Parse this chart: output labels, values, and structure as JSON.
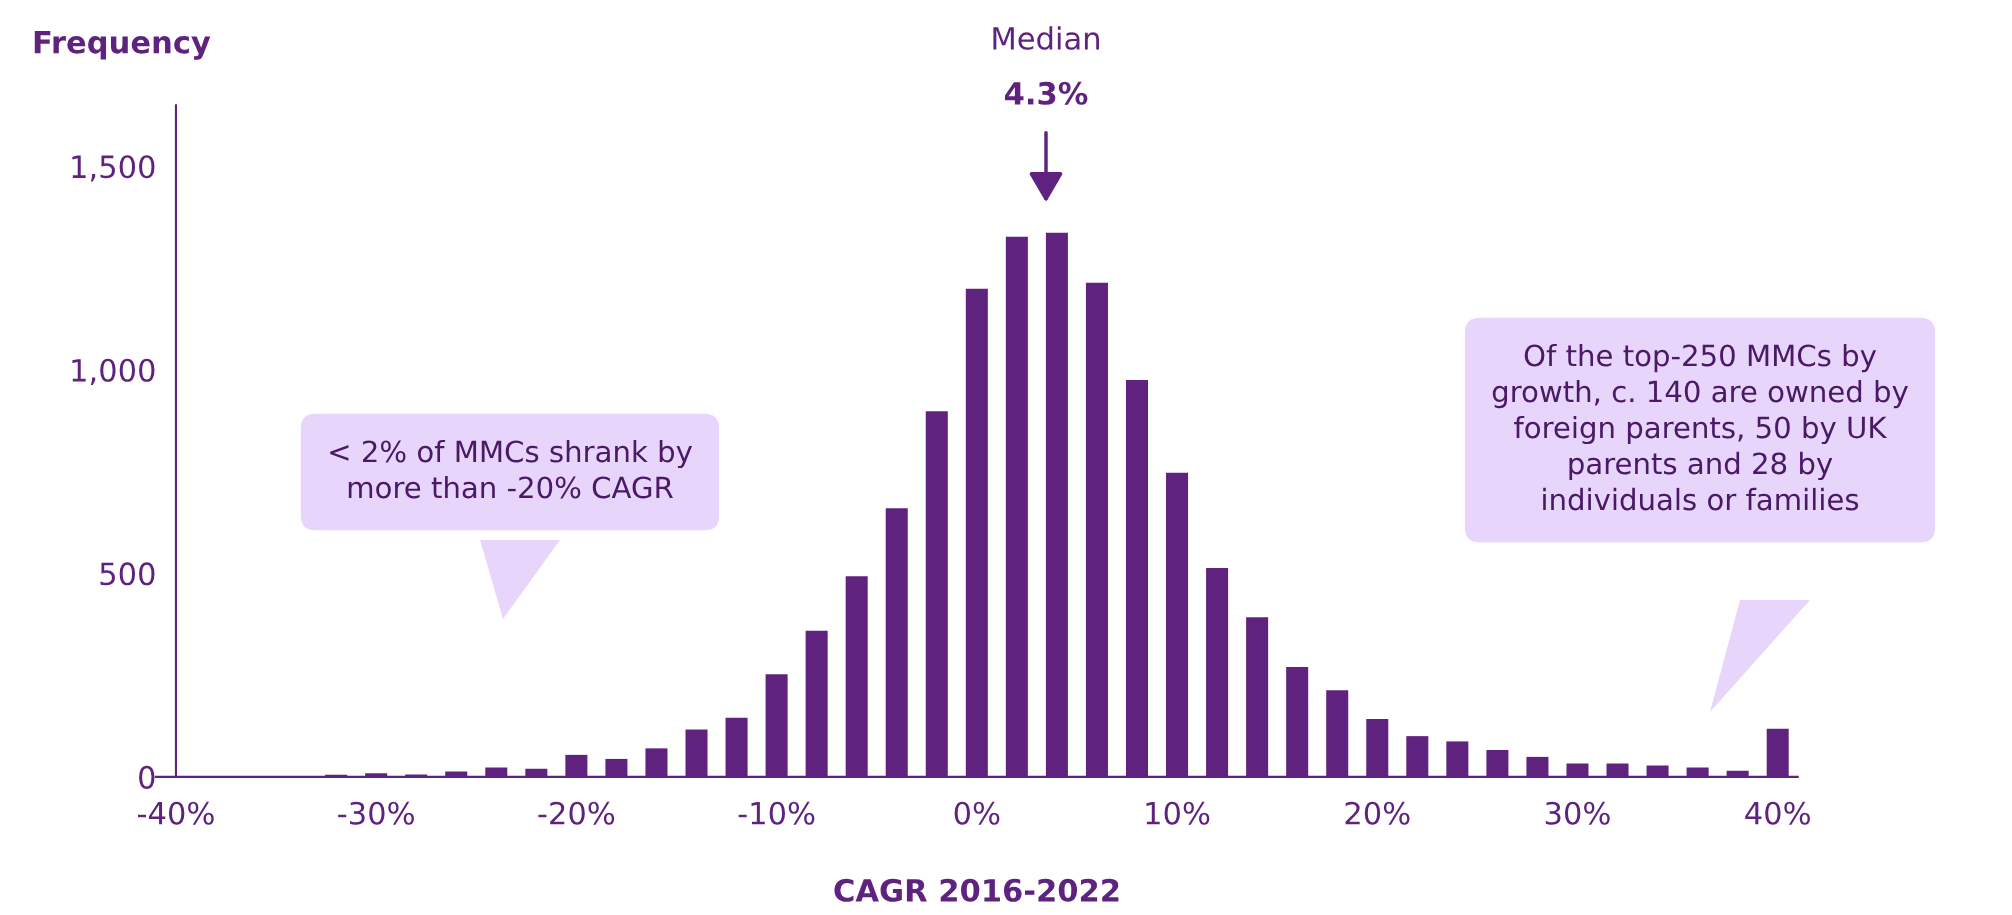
{
  "chart_data": {
    "type": "histogram",
    "ylabel": "Frequency",
    "xlabel": "CAGR 2016-2022",
    "bins": [
      -41,
      -39,
      -37,
      -35,
      -33,
      -31,
      -29,
      -27,
      -25,
      -23,
      -21,
      -19,
      -17,
      -15,
      -13,
      -11,
      -9,
      -7,
      -5,
      -3,
      -1,
      1,
      3,
      5,
      7,
      9,
      11,
      13,
      15,
      17,
      19,
      21,
      23,
      25,
      27,
      29,
      31,
      33,
      35,
      37,
      39,
      41
    ],
    "values": [
      2,
      2,
      2,
      2,
      5,
      9,
      6,
      13,
      23,
      20,
      54,
      44,
      70,
      116,
      145,
      252,
      359,
      493,
      660,
      898,
      1199,
      1327,
      1337,
      1214,
      975,
      747,
      513,
      392,
      270,
      213,
      142,
      100,
      87,
      66,
      49,
      33,
      33,
      28,
      23,
      15,
      118
    ],
    "color": "#5f237f",
    "xlim": [
      -41,
      41
    ],
    "xticks": [
      {
        "value": -40,
        "label": "-40%"
      },
      {
        "value": -30,
        "label": "-30%"
      },
      {
        "value": -20,
        "label": "-20%"
      },
      {
        "value": -10,
        "label": "-10%"
      },
      {
        "value": 0,
        "label": "0%"
      },
      {
        "value": 10,
        "label": "10%"
      },
      {
        "value": 20,
        "label": "20%"
      },
      {
        "value": 30,
        "label": "30%"
      },
      {
        "value": 40,
        "label": "40%"
      }
    ],
    "ylim": [
      0,
      1650
    ],
    "yticks": [
      0,
      500,
      {
        "value": 1000,
        "label": "1,000"
      },
      {
        "value": 1500,
        "label": "1,500"
      }
    ],
    "annotations": [
      "Median\n4.3%",
      "< 2% of MMCs shrank by\nmore than -20% CAGR",
      "Of the top-250 MMCs by\ngrowth, c. 140 are owned by\nforeign parents, 50 by UK\nparents and 28 by\nindividuals or families"
    ],
    "grid": false,
    "legend": false
  }
}
